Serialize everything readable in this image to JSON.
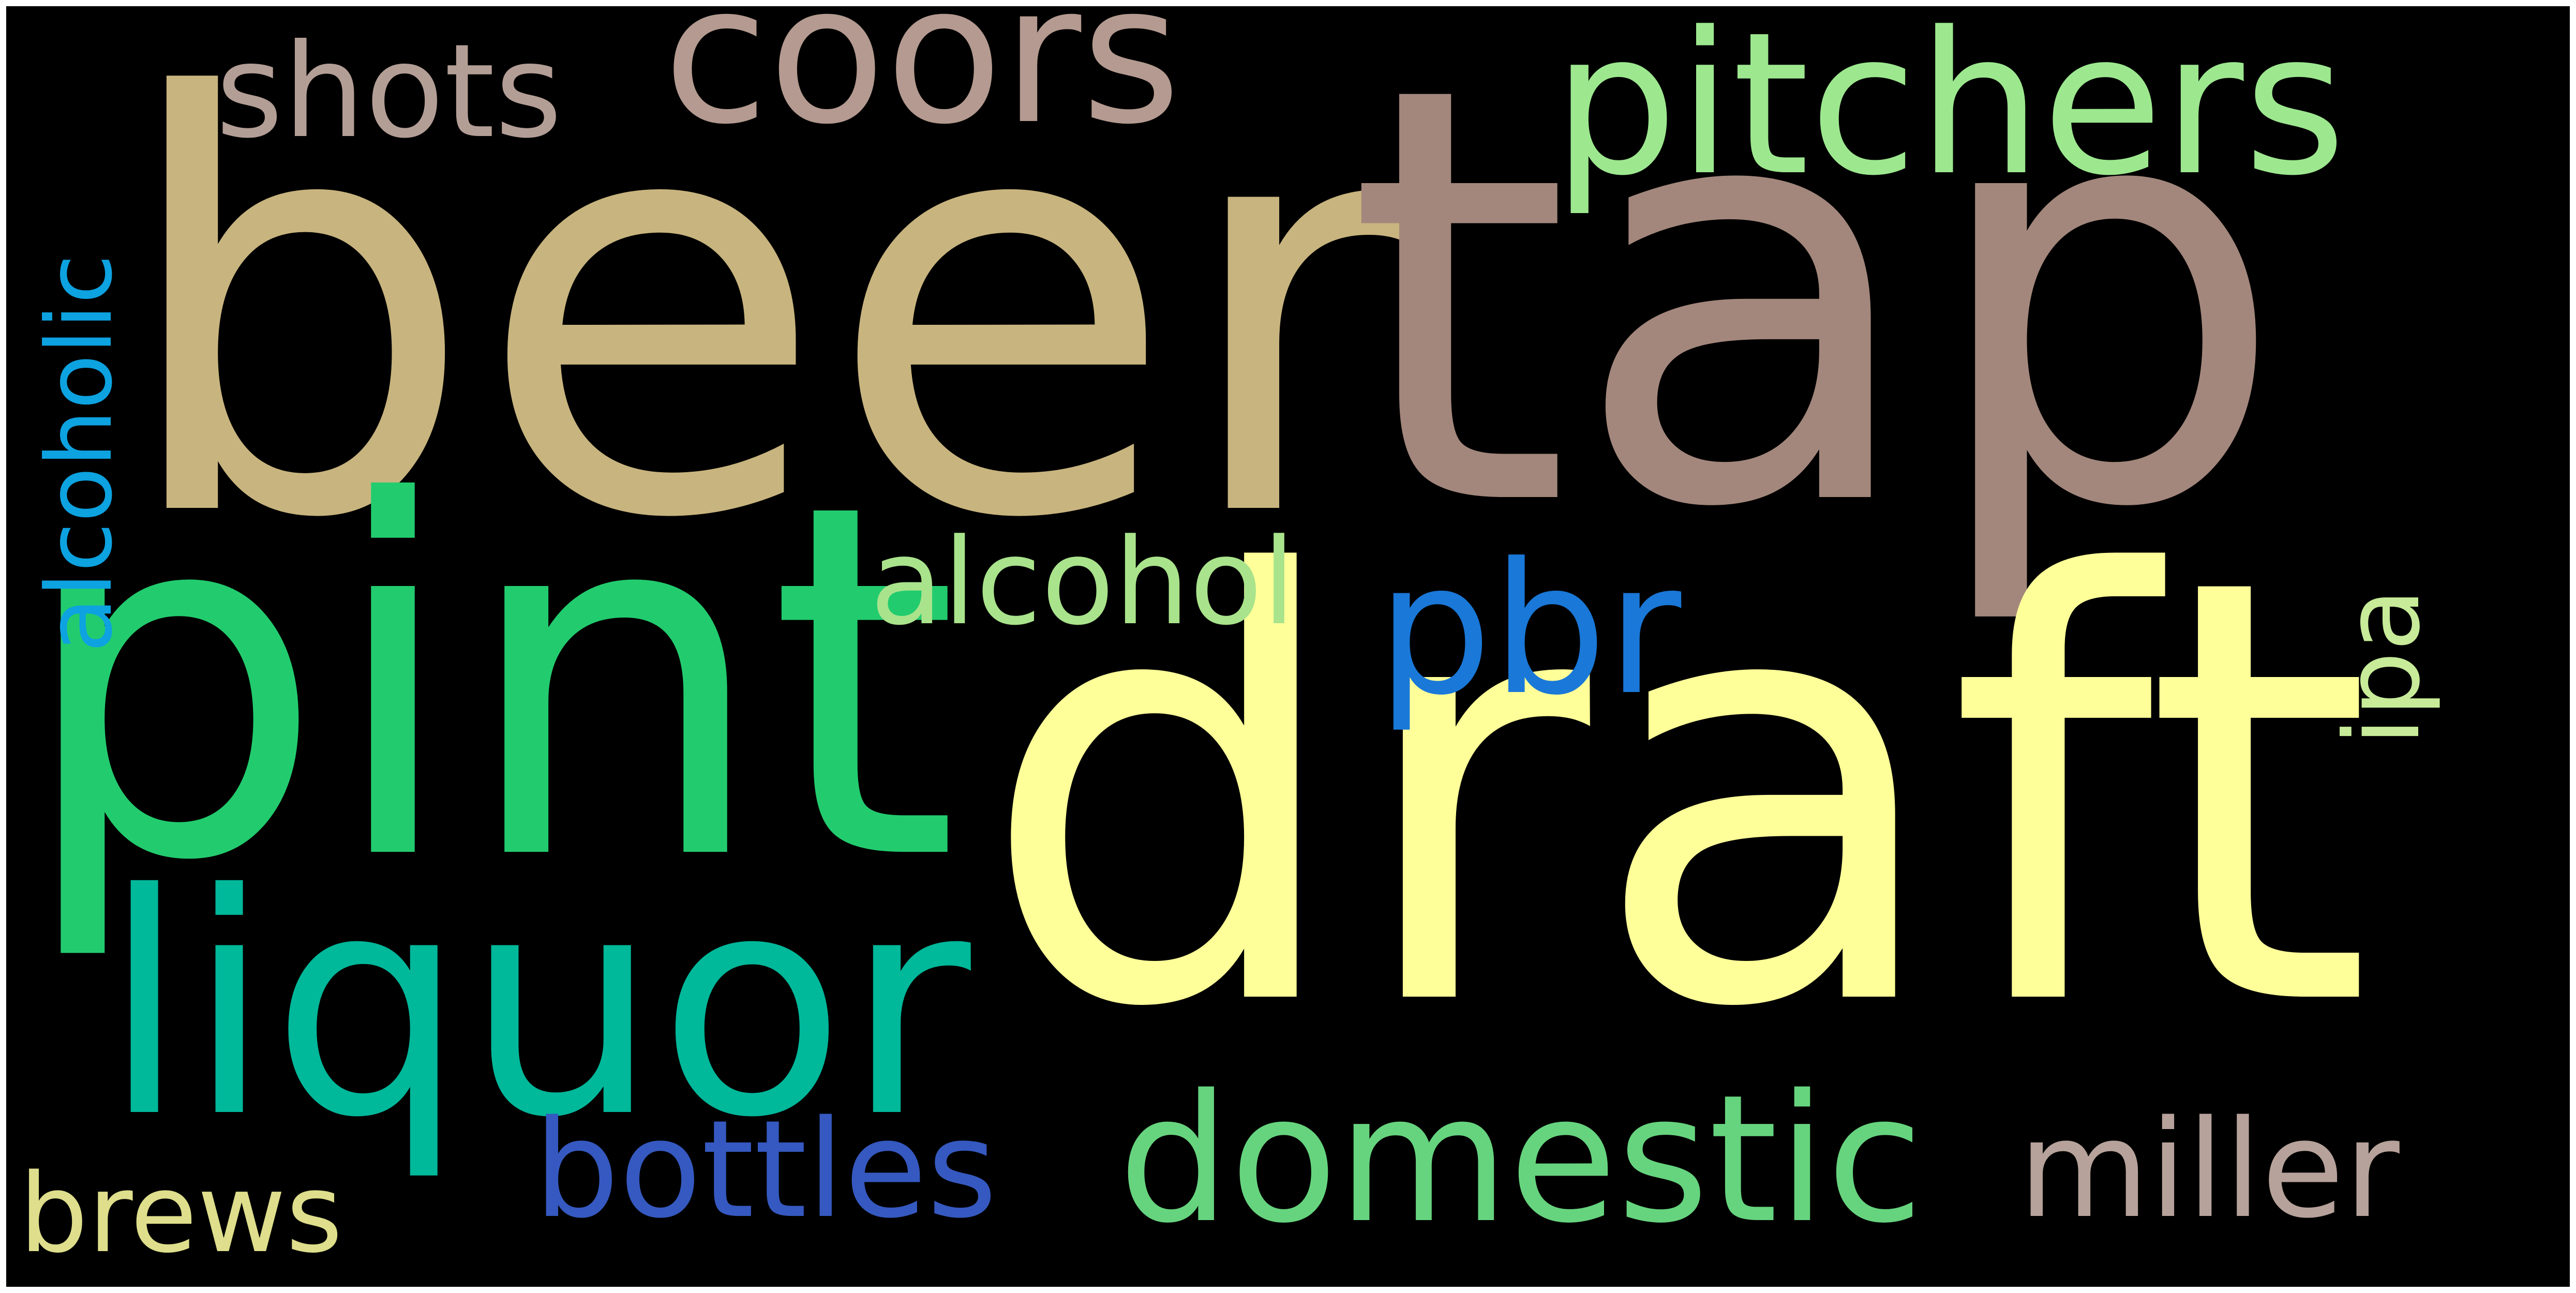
{
  "words": {
    "beer": {
      "text": "beer",
      "color": "#c8b47e"
    },
    "tap": {
      "text": "tap",
      "color": "#a3877c"
    },
    "draft": {
      "text": "draft",
      "color": "#ffff99"
    },
    "pint": {
      "text": "pint",
      "color": "#22cc6e"
    },
    "liquor": {
      "text": "liquor",
      "color": "#00b89a"
    },
    "pitchers": {
      "text": "pitchers",
      "color": "#9de88f"
    },
    "coors": {
      "text": "coors",
      "color": "#b49a90"
    },
    "shots": {
      "text": "shots",
      "color": "#b39e96"
    },
    "domestic": {
      "text": "domestic",
      "color": "#66d47e"
    },
    "pbr": {
      "text": "pbr",
      "color": "#1a78d8"
    },
    "alcohol": {
      "text": "alcohol",
      "color": "#a9e38c"
    },
    "bottles": {
      "text": "bottles",
      "color": "#3559c0"
    },
    "miller": {
      "text": "miller",
      "color": "#b6a29a"
    },
    "brews": {
      "text": "brews",
      "color": "#dede8c"
    },
    "alcoholic": {
      "text": "alcoholic",
      "color": "#0da2e0"
    },
    "ipa": {
      "text": "ipa",
      "color": "#c7eb99"
    }
  }
}
